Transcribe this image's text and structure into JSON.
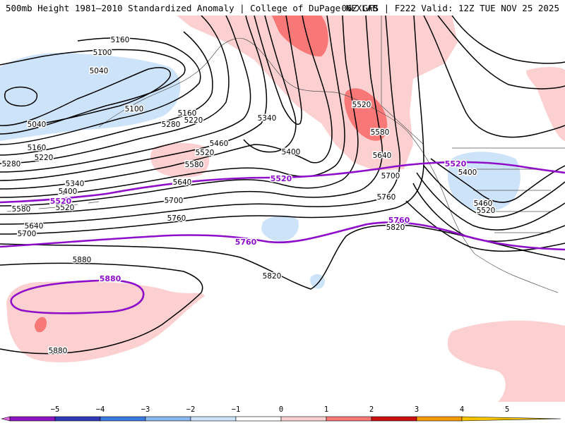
{
  "header": {
    "title_left": "500mb Height 1981–2010 Standardized Anomaly | College of DuPage NEXLAB",
    "title_right": "06Z GFS | F222 Valid: 12Z TUE NOV 25 2025"
  },
  "colors": {
    "contour": "#000000",
    "highlight_contour": "#8e0ec9",
    "coastline": "#555555",
    "anom_pos_1": "#fcd0d0",
    "anom_pos_2": "#f87878",
    "anom_neg_1": "#cde3fa"
  },
  "map": {
    "height_labels": {
      "l5160a": "5160",
      "l5100a": "5100",
      "l5040a": "5040",
      "l5100b": "5100",
      "l5160b": "5160",
      "l5220a": "5220",
      "l5280a": "5280",
      "l5040b": "5040",
      "l5160c": "5160",
      "l5220b": "5220",
      "l5280b": "5280",
      "l5340a": "5340",
      "l5400a": "5400",
      "l5580a": "5580",
      "l5520a": "5520",
      "l5640a": "5640",
      "l5700a": "5700",
      "l5340b": "5340",
      "l5400b": "5400",
      "l5460a": "5460",
      "l5520b": "5520",
      "l5580b": "5580",
      "l5640b": "5640",
      "l5700b": "5700",
      "l5760a": "5760",
      "l5520c": "5520",
      "l5580c": "5580",
      "l5640c": "5640",
      "l5700c": "5700",
      "l5760b": "5760",
      "l5820a": "5820",
      "l5400c": "5400",
      "l5460b": "5460",
      "l5520d": "5520",
      "l5880a": "5880",
      "l5820b": "5820",
      "l5880b": "5880"
    },
    "highlight_labels": {
      "h5520a": "5520",
      "h5520b": "5520",
      "h5520c": "5520",
      "h5760a": "5760",
      "h5760b": "5760",
      "h5880": "5880"
    }
  },
  "colorbar": {
    "ticks": [
      "−5",
      "−4",
      "−3",
      "−2",
      "−1",
      "0",
      "1",
      "2",
      "3",
      "4",
      "5"
    ],
    "colors": [
      "#8c16c4",
      "#3138b8",
      "#3a7be0",
      "#8cb8f0",
      "#cde3fa",
      "#ffffff",
      "#fcd0d0",
      "#f87878",
      "#cc1010",
      "#f59a00"
    ]
  }
}
